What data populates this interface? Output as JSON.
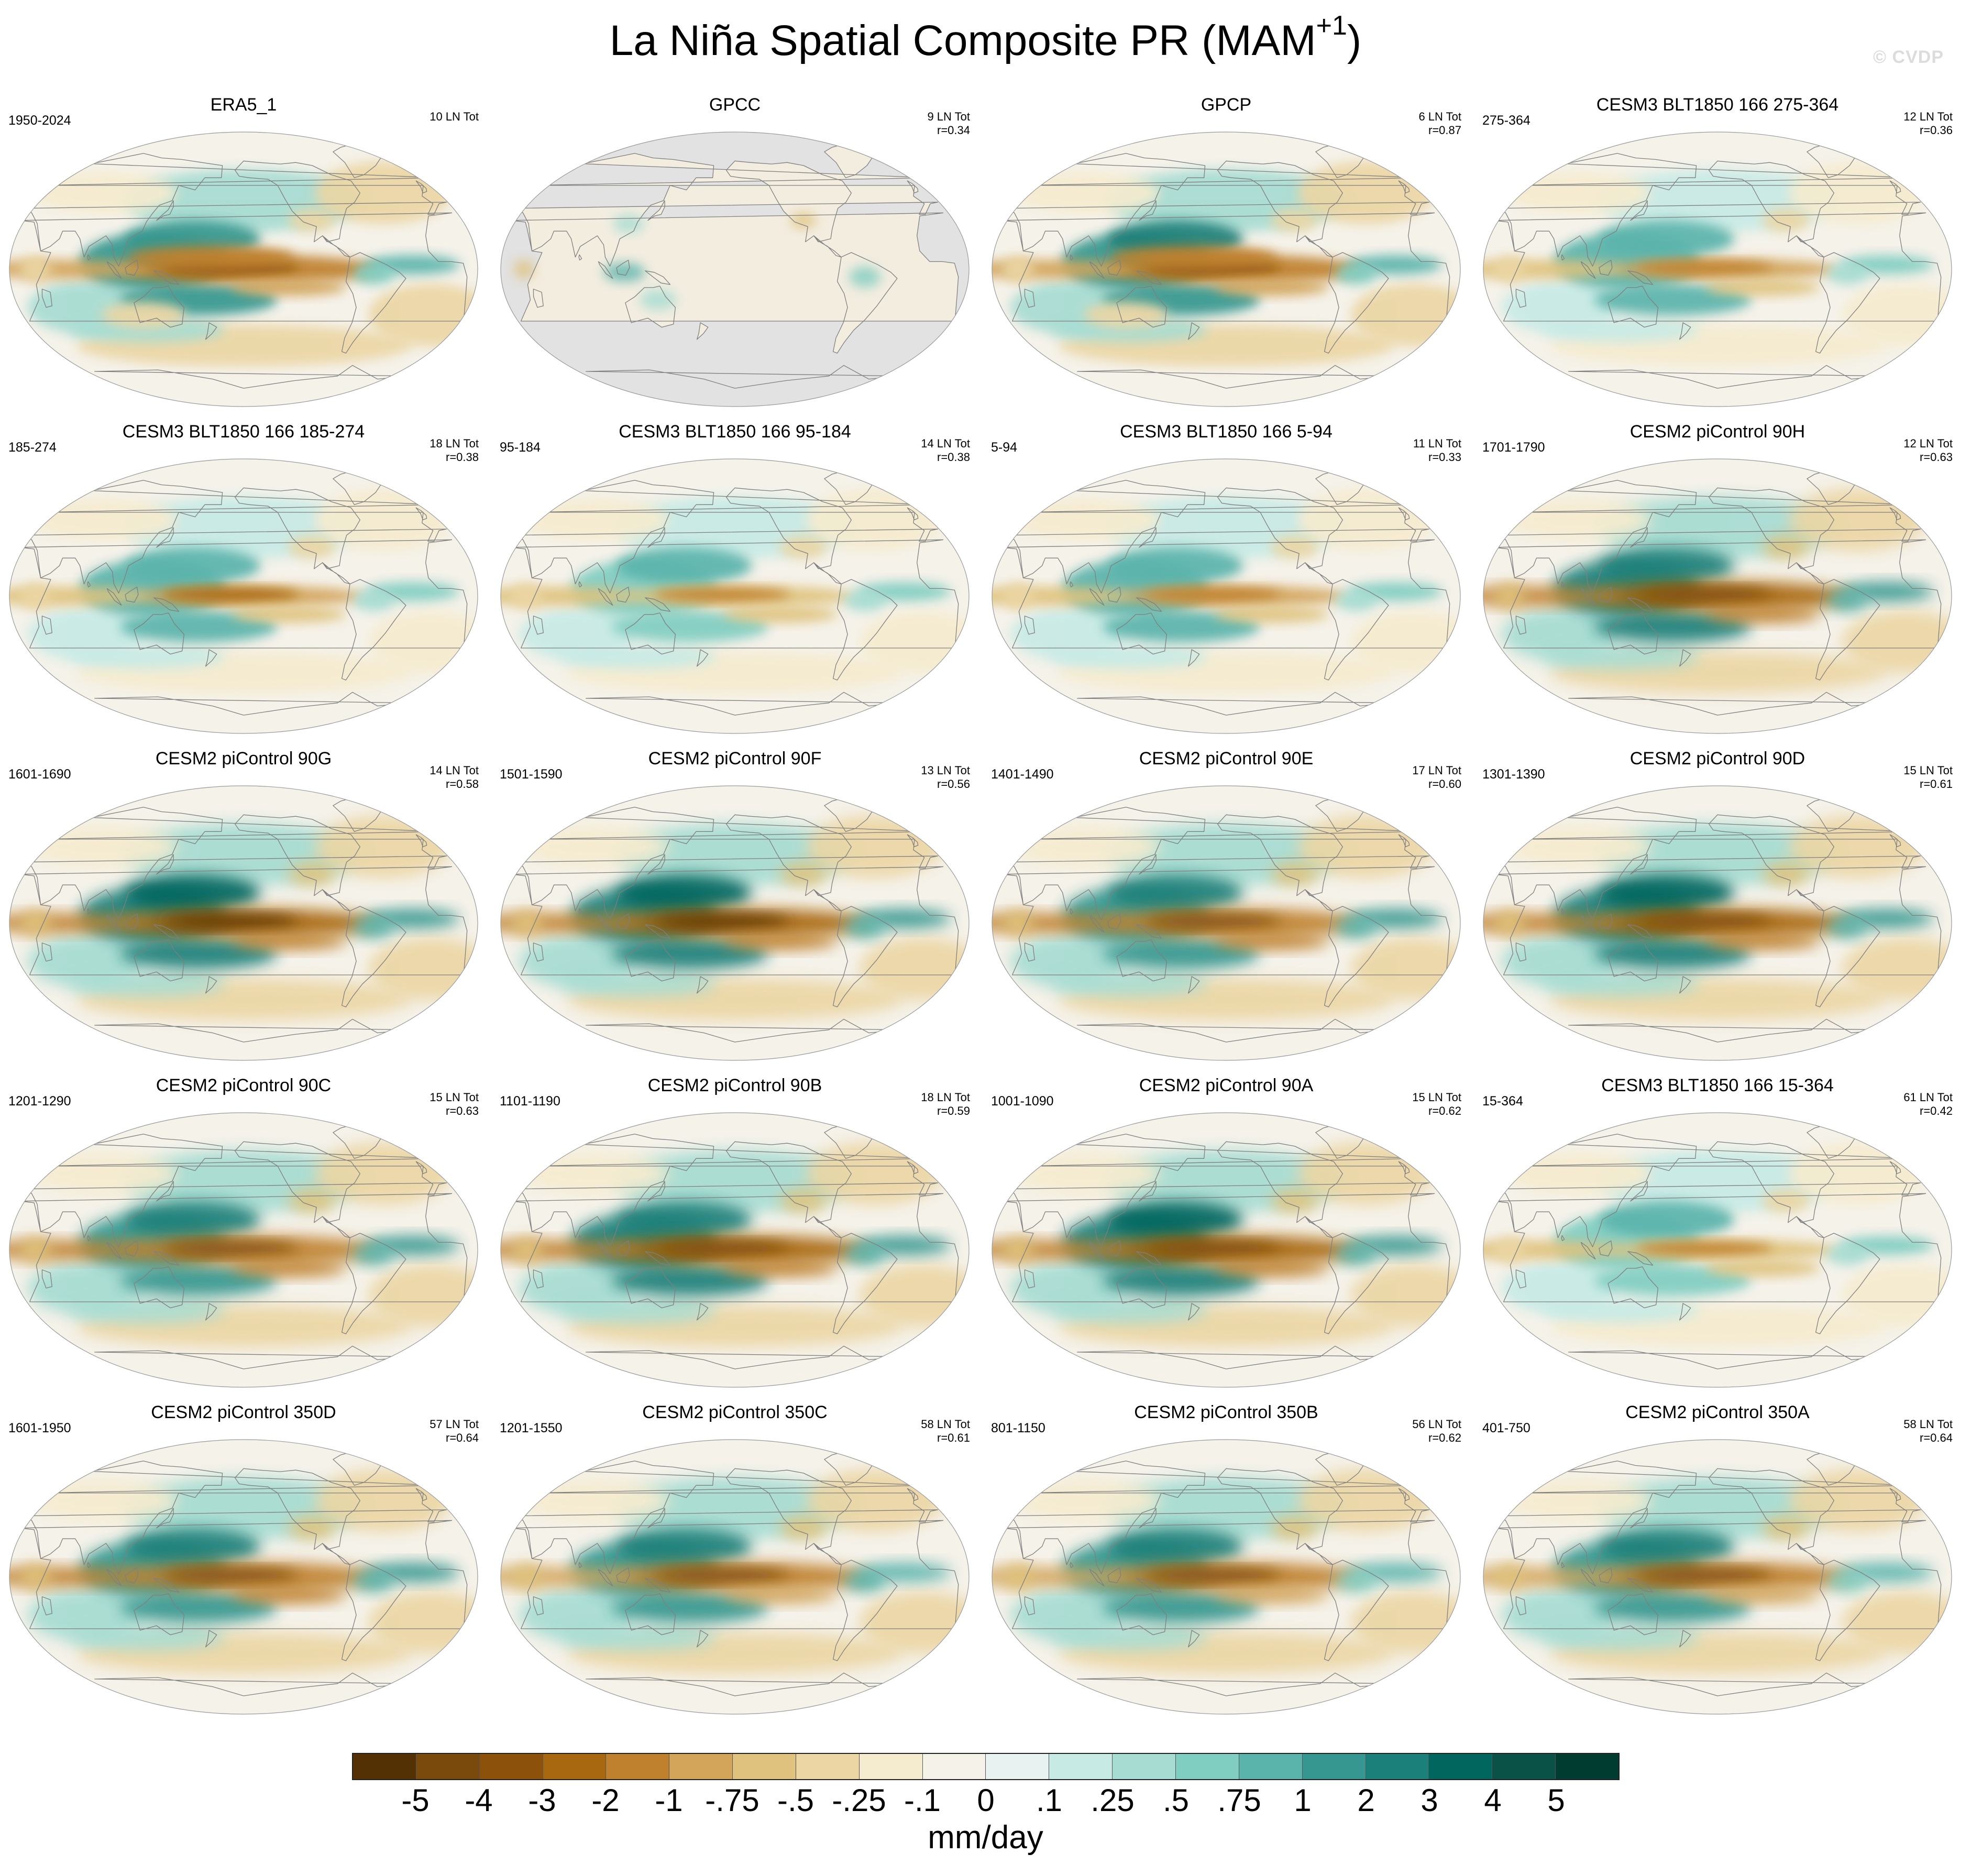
{
  "figure": {
    "title_main": "La Niña Spatial Composite PR (MAM",
    "title_sup": "+1",
    "title_close": ")",
    "watermark": "© CVDP",
    "units": "mm/day"
  },
  "chart_data": {
    "type": "heatmap",
    "title": "La Niña Spatial Composite PR (MAM+1)",
    "variable": "PR",
    "season": "MAM+1",
    "units": "mm/day",
    "projection": "Robinson (Pacific-centered)",
    "colorbar": {
      "levels": [
        "-5",
        "-4",
        "-3",
        "-2",
        "-1",
        "-.75",
        "-.5",
        "-.25",
        "-.1",
        "0",
        ".1",
        ".25",
        ".5",
        ".75",
        "1",
        "2",
        "3",
        "4",
        "5"
      ],
      "colors": [
        "#543005",
        "#7a4a0c",
        "#8c510a",
        "#a8680f",
        "#bf812d",
        "#d2a55b",
        "#dfc27d",
        "#ebd6a4",
        "#f5ebcf",
        "#f5f2ea",
        "#e8f2f0",
        "#c7eae5",
        "#a6dcd2",
        "#80cdc1",
        "#5ab4ac",
        "#35978f",
        "#1a8079",
        "#01665e",
        "#0a5248",
        "#003c30"
      ]
    },
    "panels": [
      {
        "name": "ERA5_1",
        "period": "1950-2024",
        "stats": [
          "10 LN Tot"
        ],
        "style": "obs",
        "strength": 0.75
      },
      {
        "name": "GPCC",
        "period": "",
        "stats": [
          "9 LN Tot",
          "r=0.34"
        ],
        "style": "gpcc",
        "strength": 0.45
      },
      {
        "name": "GPCP",
        "period": "",
        "stats": [
          "6 LN Tot",
          "r=0.87"
        ],
        "style": "obs",
        "strength": 0.8
      },
      {
        "name": "CESM3 BLT1850 166 275-364",
        "period": "275-364",
        "stats": [
          "12 LN Tot",
          "r=0.36"
        ],
        "style": "cesm3",
        "strength": 0.6
      },
      {
        "name": "CESM3 BLT1850 166 185-274",
        "period": "185-274",
        "stats": [
          "18 LN Tot",
          "r=0.38"
        ],
        "style": "cesm3",
        "strength": 0.62
      },
      {
        "name": "CESM3 BLT1850 166 95-184",
        "period": "95-184",
        "stats": [
          "14 LN Tot",
          "r=0.38"
        ],
        "style": "cesm3",
        "strength": 0.58
      },
      {
        "name": "CESM3 BLT1850 166 5-94",
        "period": "5-94",
        "stats": [
          "11 LN Tot",
          "r=0.33"
        ],
        "style": "cesm3",
        "strength": 0.6
      },
      {
        "name": "CESM2 piControl 90H",
        "period": "1701-1790",
        "stats": [
          "12 LN Tot",
          "r=0.63"
        ],
        "style": "cesm2",
        "strength": 0.92
      },
      {
        "name": "CESM2 piControl 90G",
        "period": "1601-1690",
        "stats": [
          "14 LN Tot",
          "r=0.58"
        ],
        "style": "cesm2",
        "strength": 0.95
      },
      {
        "name": "CESM2 piControl 90F",
        "period": "1501-1590",
        "stats": [
          "13 LN Tot",
          "r=0.56"
        ],
        "style": "cesm2",
        "strength": 1.0
      },
      {
        "name": "CESM2 piControl 90E",
        "period": "1401-1490",
        "stats": [
          "17 LN Tot",
          "r=0.60"
        ],
        "style": "cesm2",
        "strength": 0.9
      },
      {
        "name": "CESM2 piControl 90D",
        "period": "1301-1390",
        "stats": [
          "15 LN Tot",
          "r=0.61"
        ],
        "style": "cesm2",
        "strength": 0.93
      },
      {
        "name": "CESM2 piControl 90C",
        "period": "1201-1290",
        "stats": [
          "15 LN Tot",
          "r=0.63"
        ],
        "style": "cesm2",
        "strength": 0.9
      },
      {
        "name": "CESM2 piControl 90B",
        "period": "1101-1190",
        "stats": [
          "18 LN Tot",
          "r=0.59"
        ],
        "style": "cesm2",
        "strength": 0.92
      },
      {
        "name": "CESM2 piControl 90A",
        "period": "1001-1090",
        "stats": [
          "15 LN Tot",
          "r=0.62"
        ],
        "style": "cesm2",
        "strength": 0.93
      },
      {
        "name": "CESM3 BLT1850 166 15-364",
        "period": "15-364",
        "stats": [
          "61 LN Tot",
          "r=0.42"
        ],
        "style": "cesm3",
        "strength": 0.55
      },
      {
        "name": "CESM2 piControl 350D",
        "period": "1601-1950",
        "stats": [
          "57 LN Tot",
          "r=0.64"
        ],
        "style": "cesm2",
        "strength": 0.9
      },
      {
        "name": "CESM2 piControl 350C",
        "period": "1201-1550",
        "stats": [
          "58 LN Tot",
          "r=0.61"
        ],
        "style": "cesm2",
        "strength": 0.88
      },
      {
        "name": "CESM2 piControl 350B",
        "period": "801-1150",
        "stats": [
          "56 LN Tot",
          "r=0.62"
        ],
        "style": "cesm2",
        "strength": 0.87
      },
      {
        "name": "CESM2 piControl 350A",
        "period": "401-750",
        "stats": [
          "58 LN Tot",
          "r=0.64"
        ],
        "style": "cesm2",
        "strength": 0.86
      }
    ]
  }
}
